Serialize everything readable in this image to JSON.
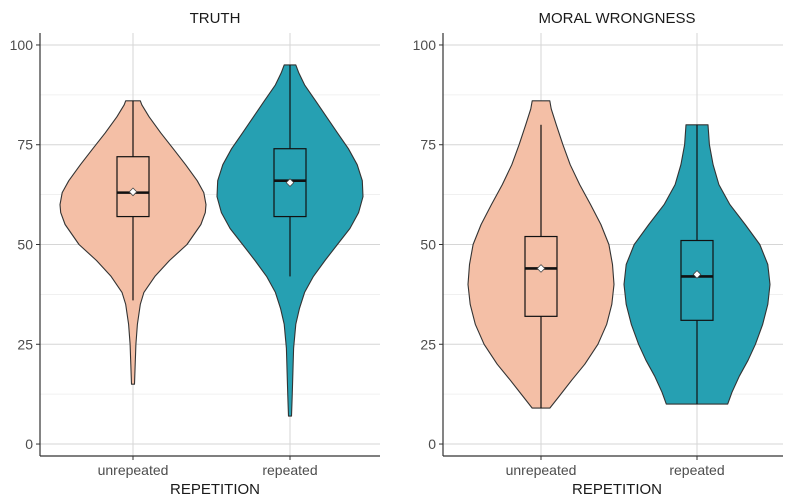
{
  "chart_data": [
    {
      "type": "violin",
      "title": "TRUTH",
      "xlabel": "REPETITION",
      "ylabel": "",
      "ylim": [
        -3,
        103
      ],
      "yticks": [
        0,
        25,
        50,
        75,
        100
      ],
      "grid": true,
      "categories": [
        "unrepeated",
        "repeated"
      ],
      "series": [
        {
          "name": "unrepeated",
          "color": "#F4BFA6",
          "min": 15,
          "max": 86,
          "q1": 57,
          "median": 63,
          "q3": 72,
          "mean": 63.2,
          "whisker_low": 36,
          "whisker_high": 86,
          "density": [
            [
              15,
              0.02
            ],
            [
              20,
              0.03
            ],
            [
              25,
              0.04
            ],
            [
              30,
              0.06
            ],
            [
              35,
              0.1
            ],
            [
              38,
              0.15
            ],
            [
              42,
              0.3
            ],
            [
              46,
              0.5
            ],
            [
              50,
              0.74
            ],
            [
              55,
              0.93
            ],
            [
              58,
              0.99
            ],
            [
              60,
              1.0
            ],
            [
              63,
              0.97
            ],
            [
              66,
              0.88
            ],
            [
              70,
              0.72
            ],
            [
              74,
              0.55
            ],
            [
              78,
              0.38
            ],
            [
              82,
              0.22
            ],
            [
              85,
              0.12
            ],
            [
              86,
              0.1
            ]
          ]
        },
        {
          "name": "repeated",
          "color": "#26A0B2",
          "min": 7,
          "max": 95,
          "q1": 57,
          "median": 66,
          "q3": 74,
          "mean": 65.5,
          "whisker_low": 42,
          "whisker_high": 95,
          "density": [
            [
              7,
              0.02
            ],
            [
              12,
              0.03
            ],
            [
              18,
              0.04
            ],
            [
              24,
              0.05
            ],
            [
              30,
              0.08
            ],
            [
              34,
              0.13
            ],
            [
              38,
              0.2
            ],
            [
              42,
              0.32
            ],
            [
              46,
              0.48
            ],
            [
              50,
              0.65
            ],
            [
              54,
              0.82
            ],
            [
              58,
              0.94
            ],
            [
              62,
              1.0
            ],
            [
              66,
              0.99
            ],
            [
              70,
              0.92
            ],
            [
              74,
              0.8
            ],
            [
              78,
              0.65
            ],
            [
              82,
              0.5
            ],
            [
              86,
              0.35
            ],
            [
              90,
              0.2
            ],
            [
              93,
              0.12
            ],
            [
              95,
              0.08
            ]
          ]
        }
      ]
    },
    {
      "type": "violin",
      "title": "MORAL WRONGNESS",
      "xlabel": "REPETITION",
      "ylabel": "",
      "ylim": [
        -3,
        103
      ],
      "yticks": [
        0,
        25,
        50,
        75,
        100
      ],
      "grid": true,
      "categories": [
        "unrepeated",
        "repeated"
      ],
      "series": [
        {
          "name": "unrepeated",
          "color": "#F4BFA6",
          "min": 9,
          "max": 86,
          "q1": 32,
          "median": 44,
          "q3": 52,
          "mean": 44,
          "whisker_low": 9,
          "whisker_high": 80,
          "density": [
            [
              9,
              0.12
            ],
            [
              12,
              0.25
            ],
            [
              16,
              0.42
            ],
            [
              20,
              0.6
            ],
            [
              25,
              0.78
            ],
            [
              30,
              0.9
            ],
            [
              35,
              0.97
            ],
            [
              40,
              1.0
            ],
            [
              45,
              0.98
            ],
            [
              50,
              0.93
            ],
            [
              55,
              0.82
            ],
            [
              60,
              0.68
            ],
            [
              65,
              0.53
            ],
            [
              70,
              0.4
            ],
            [
              75,
              0.3
            ],
            [
              80,
              0.21
            ],
            [
              84,
              0.14
            ],
            [
              86,
              0.12
            ]
          ]
        },
        {
          "name": "repeated",
          "color": "#26A0B2",
          "min": 10,
          "max": 80,
          "q1": 31,
          "median": 42,
          "q3": 51,
          "mean": 42.5,
          "whisker_low": 10,
          "whisker_high": 80,
          "density": [
            [
              10,
              0.42
            ],
            [
              13,
              0.48
            ],
            [
              17,
              0.58
            ],
            [
              21,
              0.7
            ],
            [
              25,
              0.8
            ],
            [
              30,
              0.9
            ],
            [
              35,
              0.97
            ],
            [
              40,
              1.0
            ],
            [
              45,
              0.97
            ],
            [
              50,
              0.86
            ],
            [
              55,
              0.66
            ],
            [
              60,
              0.45
            ],
            [
              65,
              0.3
            ],
            [
              70,
              0.22
            ],
            [
              75,
              0.17
            ],
            [
              80,
              0.15
            ]
          ]
        }
      ]
    }
  ]
}
